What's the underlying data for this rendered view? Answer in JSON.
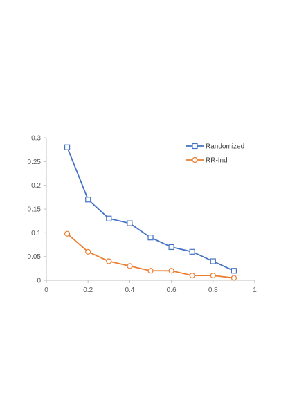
{
  "chart_data": {
    "type": "line",
    "title": "",
    "xlabel": "",
    "ylabel": "",
    "xlim": [
      0,
      1
    ],
    "ylim": [
      0,
      0.3
    ],
    "x_ticks": [
      "0",
      "0.2",
      "0.4",
      "0.6",
      "0.8",
      "1"
    ],
    "y_ticks": [
      "0",
      "0.05",
      "0.1",
      "0.15",
      "0.2",
      "0.25",
      "0.3"
    ],
    "grid": false,
    "legend_position": "top-right",
    "x": [
      0.1,
      0.2,
      0.3,
      0.4,
      0.5,
      0.6,
      0.7,
      0.8,
      0.9
    ],
    "series": [
      {
        "name": "Randomized",
        "marker": "square",
        "color": "#4472C4",
        "values": [
          0.28,
          0.17,
          0.13,
          0.12,
          0.09,
          0.07,
          0.06,
          0.04,
          0.02
        ]
      },
      {
        "name": "RR-Ind",
        "marker": "circle",
        "color": "#ED7D31",
        "values": [
          0.098,
          0.06,
          0.04,
          0.03,
          0.02,
          0.02,
          0.01,
          0.01,
          0.005
        ]
      }
    ]
  }
}
